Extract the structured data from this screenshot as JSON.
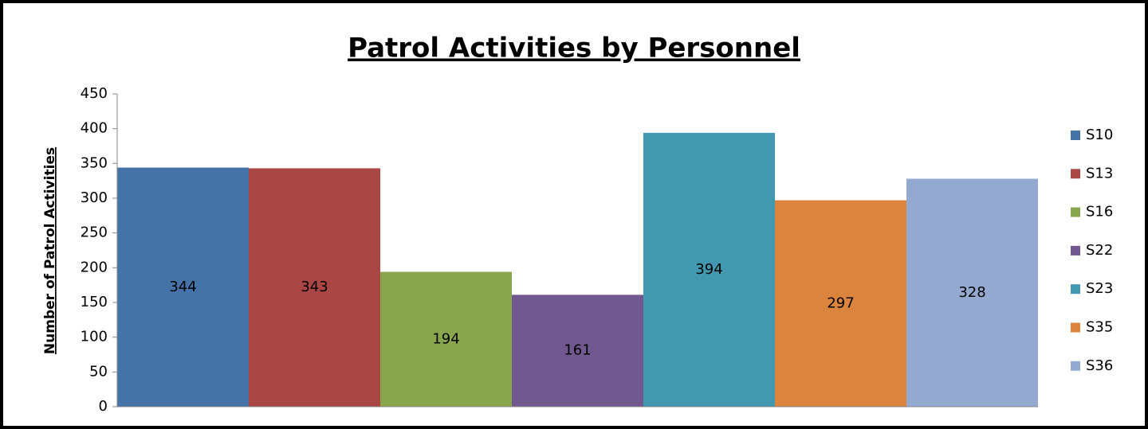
{
  "chart_data": {
    "type": "bar",
    "title": "Patrol Activities by Personnel",
    "y_label": "Number of Patrol Activities",
    "categories": [
      null
    ],
    "series": [
      {
        "name": "S10",
        "color": "#4572a7",
        "values": [
          344
        ]
      },
      {
        "name": "S13",
        "color": "#aa4643",
        "values": [
          343
        ]
      },
      {
        "name": "S16",
        "color": "#89a54e",
        "values": [
          194
        ]
      },
      {
        "name": "S22",
        "color": "#71588f",
        "values": [
          161
        ]
      },
      {
        "name": "S23",
        "color": "#4198af",
        "values": [
          394
        ]
      },
      {
        "name": "S35",
        "color": "#db843d",
        "values": [
          297
        ]
      },
      {
        "name": "S36",
        "color": "#93a9cf",
        "values": [
          328
        ]
      }
    ],
    "ylim": [
      0,
      450
    ],
    "yticks": [
      0,
      50,
      100,
      150,
      200,
      250,
      300,
      350,
      400,
      450
    ],
    "legend": "right",
    "data_labels": true
  }
}
